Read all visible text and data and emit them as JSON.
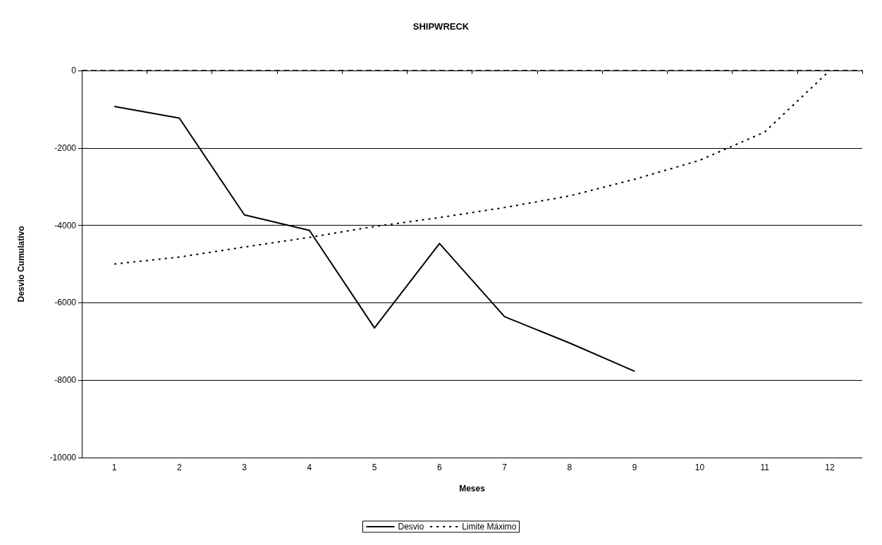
{
  "chart_data": {
    "type": "line",
    "title": "SHIPWRECK",
    "xlabel": "Meses",
    "ylabel": "Desvio Cumulativo",
    "categories": [
      "1",
      "2",
      "3",
      "4",
      "5",
      "6",
      "7",
      "8",
      "9",
      "10",
      "11",
      "12"
    ],
    "series": [
      {
        "name": "Desvio",
        "color": "#000000",
        "line_style": "solid",
        "values": [
          -930,
          -1230,
          -3730,
          -4130,
          -6650,
          -4470,
          -6360,
          -7040,
          -7770,
          null,
          null,
          null
        ]
      },
      {
        "name": "Limite Máximo",
        "color": "#000000",
        "line_style": "dotted",
        "values": [
          -5000,
          -4820,
          -4560,
          -4310,
          -4030,
          -3800,
          -3540,
          -3240,
          -2810,
          -2320,
          -1590,
          0
        ]
      }
    ],
    "ylim": [
      -10000,
      0
    ],
    "yticks": [
      -10000,
      -8000,
      -6000,
      -4000,
      -2000,
      0
    ],
    "ref_lines": [
      {
        "axis": "y",
        "value": 0,
        "color": "#000000",
        "line_style": "dashed"
      }
    ],
    "grid": "y",
    "legend": "bottom",
    "marker": "none"
  }
}
